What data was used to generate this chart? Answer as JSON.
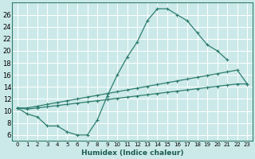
{
  "xlabel": "Humidex (Indice chaleur)",
  "background_color": "#cce9e9",
  "grid_color": "#ffffff",
  "line_color": "#2e7d6e",
  "xlim": [
    -0.5,
    23.5
  ],
  "ylim": [
    5.0,
    28.0
  ],
  "xticks": [
    0,
    1,
    2,
    3,
    4,
    5,
    6,
    7,
    8,
    9,
    10,
    11,
    12,
    13,
    14,
    15,
    16,
    17,
    18,
    19,
    20,
    21,
    22,
    23
  ],
  "yticks": [
    6,
    8,
    10,
    12,
    14,
    16,
    18,
    20,
    22,
    24,
    26
  ],
  "line1_x": [
    0,
    1,
    2,
    3,
    4,
    5,
    6,
    7,
    8,
    9,
    10,
    11,
    12,
    13,
    14,
    15,
    16,
    17,
    18,
    19,
    20,
    21
  ],
  "line1_y": [
    10.5,
    9.5,
    9.0,
    7.5,
    7.5,
    6.5,
    6.0,
    6.0,
    8.5,
    12.5,
    16.0,
    19.0,
    21.5,
    25.0,
    27.0,
    27.0,
    26.0,
    25.0,
    23.0,
    21.0,
    20.0,
    18.5
  ],
  "line2_x": [
    0,
    1,
    2,
    3,
    4,
    5,
    6,
    7,
    8,
    9,
    10,
    11,
    12,
    13,
    14,
    15,
    16,
    17,
    18,
    19,
    20,
    21,
    22,
    23
  ],
  "line2_y": [
    10.5,
    10.3,
    10.5,
    10.7,
    10.9,
    11.1,
    11.3,
    11.5,
    11.7,
    11.9,
    12.1,
    12.3,
    12.5,
    12.7,
    12.9,
    13.1,
    13.3,
    13.5,
    13.7,
    13.9,
    14.1,
    14.3,
    14.5,
    14.5
  ],
  "line3_x": [
    0,
    1,
    2,
    3,
    4,
    5,
    6,
    7,
    8,
    9,
    10,
    11,
    12,
    13,
    14,
    15,
    16,
    17,
    18,
    19,
    20,
    21,
    22,
    23
  ],
  "line3_y": [
    10.5,
    10.5,
    10.8,
    11.1,
    11.4,
    11.7,
    12.0,
    12.3,
    12.6,
    12.9,
    13.2,
    13.5,
    13.8,
    14.1,
    14.4,
    14.7,
    15.0,
    15.3,
    15.6,
    15.9,
    16.2,
    16.5,
    16.8,
    14.5
  ],
  "xlabel_fontsize": 6.5,
  "tick_fontsize_x": 5,
  "tick_fontsize_y": 6
}
